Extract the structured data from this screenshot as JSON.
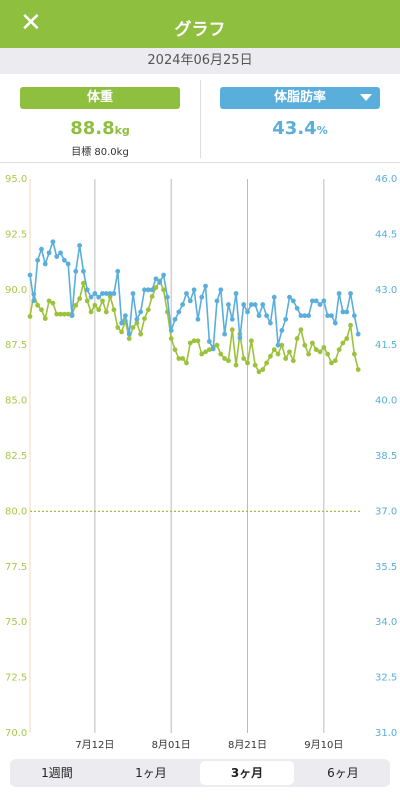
{
  "header": {
    "title": "グラフ",
    "close": "✕"
  },
  "date": "2024年06月25日",
  "weight": {
    "label": "体重",
    "value": 88.8,
    "unit": "kg",
    "target": "目標 80.0kg"
  },
  "body_fat": {
    "label": "体脂肪率",
    "value": 43.4,
    "unit": "%"
  },
  "chart_data": {
    "type": "line",
    "x": [
      0,
      1,
      2,
      3,
      4,
      5,
      6,
      7,
      8,
      9,
      10,
      11,
      12,
      13,
      14,
      15,
      16,
      17,
      18,
      19,
      20,
      21,
      22,
      23,
      24,
      25,
      26,
      27,
      28,
      29,
      30,
      31,
      32,
      33,
      34,
      35,
      36,
      37,
      38,
      39,
      40,
      41,
      42,
      43,
      44,
      45,
      46,
      47,
      48,
      49,
      50,
      51,
      52,
      53,
      54,
      55,
      56,
      57,
      58,
      59,
      60,
      61,
      62,
      63,
      64,
      65,
      66,
      67,
      68,
      69,
      70,
      71,
      72,
      73,
      74,
      75,
      76,
      77,
      78,
      79,
      80,
      81,
      82,
      83,
      84,
      85,
      86
    ],
    "xlim": [
      0,
      87
    ],
    "xticks": [
      {
        "value": 17,
        "label": "7月12日"
      },
      {
        "value": 37,
        "label": "8月01日"
      },
      {
        "value": 57,
        "label": "8月21日"
      },
      {
        "value": 77,
        "label": "9月10日"
      }
    ],
    "ylim": [
      70,
      95
    ],
    "yticks": [
      {
        "value": 95,
        "label": "95.0"
      },
      {
        "value": 92.5,
        "label": "92.5"
      },
      {
        "value": 90,
        "label": "90.0"
      },
      {
        "value": 87.5,
        "label": "87.5"
      },
      {
        "value": 85,
        "label": "85.0"
      },
      {
        "value": 82.5,
        "label": "82.5"
      },
      {
        "value": 80,
        "label": "80.0"
      },
      {
        "value": 77.5,
        "label": "77.5"
      },
      {
        "value": 75,
        "label": "75.0"
      },
      {
        "value": 72.5,
        "label": "72.5"
      },
      {
        "value": 70,
        "label": "70.0"
      }
    ],
    "y2lim": [
      31,
      46
    ],
    "y2ticks": [
      {
        "value": 46,
        "label": "46.0"
      },
      {
        "value": 44.5,
        "label": "44.5"
      },
      {
        "value": 43,
        "label": "43.0"
      },
      {
        "value": 41.5,
        "label": "41.5"
      },
      {
        "value": 40,
        "label": "40.0"
      },
      {
        "value": 38.5,
        "label": "38.5"
      },
      {
        "value": 37,
        "label": "37.0"
      },
      {
        "value": 35.5,
        "label": "35.5"
      },
      {
        "value": 34,
        "label": "34.0"
      },
      {
        "value": 32.5,
        "label": "32.5"
      },
      {
        "value": 31,
        "label": "31.0"
      }
    ],
    "target_line": 80,
    "series": [
      {
        "name": "体重",
        "color": "#9cc23c",
        "axis": "y",
        "values": [
          88.8,
          89.8,
          89.3,
          89.1,
          88.7,
          89.5,
          89.4,
          88.9,
          88.9,
          88.9,
          88.9,
          88.9,
          89.3,
          89.6,
          90.3,
          89.5,
          89.0,
          89.3,
          89.1,
          89.5,
          89.0,
          89.7,
          89.1,
          88.3,
          88.1,
          88.6,
          87.8,
          88.3,
          88.5,
          88.0,
          88.7,
          89.1,
          89.7,
          90.1,
          90.4,
          90.0,
          89.0,
          87.8,
          87.3,
          86.9,
          86.9,
          86.7,
          87.6,
          87.7,
          87.7,
          87.1,
          87.2,
          87.3,
          87.4,
          87.5,
          87.1,
          86.9,
          86.8,
          88.2,
          86.6,
          88.0,
          86.9,
          86.7,
          87.7,
          86.6,
          86.3,
          86.4,
          86.7,
          87.0,
          87.3,
          87.1,
          87.5,
          86.9,
          87.2,
          86.8,
          87.8,
          88.2,
          87.5,
          87.1,
          87.6,
          87.3,
          87.2,
          87.4,
          87.1,
          86.7,
          86.8,
          87.3,
          87.6,
          87.8,
          88.4,
          87.1,
          86.4
        ]
      },
      {
        "name": "体脂肪率",
        "color": "#5aaedc",
        "axis": "y2",
        "values": [
          43.4,
          42.7,
          43.8,
          44.1,
          43.7,
          44.0,
          44.3,
          43.9,
          44.0,
          43.8,
          43.7,
          42.3,
          43.5,
          44.2,
          43.5,
          43.0,
          42.8,
          42.9,
          42.8,
          42.9,
          42.9,
          42.9,
          42.9,
          43.5,
          42.1,
          42.3,
          41.8,
          42.9,
          42.2,
          42.4,
          43.0,
          43.0,
          43.0,
          43.3,
          43.2,
          43.4,
          42.8,
          41.9,
          42.2,
          42.4,
          42.6,
          42.9,
          42.7,
          43.0,
          42.2,
          42.8,
          43.1,
          41.6,
          41.4,
          42.7,
          43.0,
          41.8,
          42.6,
          42.2,
          42.9,
          41.7,
          42.6,
          42.4,
          42.6,
          42.6,
          42.3,
          42.6,
          42.3,
          42.1,
          42.8,
          41.5,
          41.9,
          42.2,
          42.8,
          42.7,
          42.5,
          42.3,
          42.3,
          42.3,
          42.7,
          42.7,
          42.6,
          42.7,
          42.3,
          42.3,
          42.1,
          42.9,
          42.4,
          42.4,
          42.9,
          42.3,
          41.8
        ]
      }
    ]
  },
  "tabs": [
    "1週間",
    "1ヶ月",
    "3ヶ月",
    "6ヶ月"
  ],
  "selected_tab": 2
}
